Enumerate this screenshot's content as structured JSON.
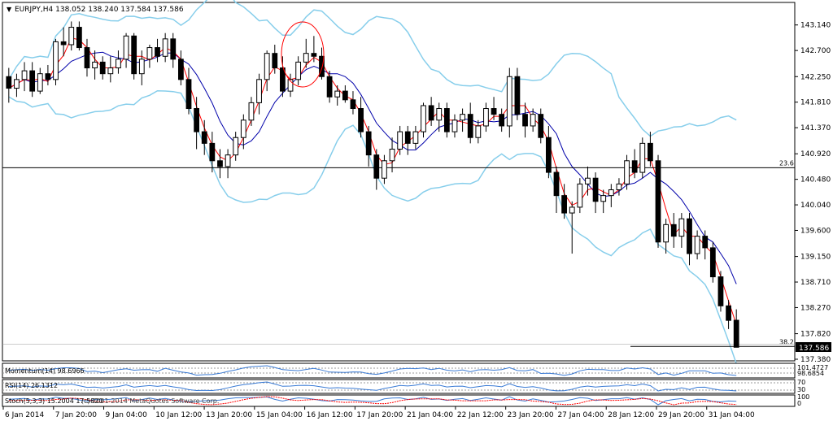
{
  "chart_data": {
    "type": "candlestick",
    "title": "EURJPY,H4  138.052 138.240 137.584 137.586",
    "symbol": "EURJPY",
    "timeframe": "H4",
    "ohlc_header": "138.052 138.240 137.584 137.586",
    "ylim": [
      137.38,
      143.5
    ],
    "y_ticks": [
      "143.140",
      "142.700",
      "142.250",
      "141.810",
      "141.370",
      "140.920",
      "140.480",
      "140.040",
      "139.600",
      "139.150",
      "138.710",
      "138.270",
      "137.820",
      "137.380"
    ],
    "last_price": "137.586",
    "x_ticks": [
      "6 Jan 2014",
      "7 Jan 20:00",
      "9 Jan 04:00",
      "10 Jan 12:00",
      "13 Jan 20:00",
      "15 Jan 04:00",
      "16 Jan 12:00",
      "17 Jan 20:00",
      "21 Jan 04:00",
      "22 Jan 12:00",
      "23 Jan 20:00",
      "27 Jan 04:00",
      "28 Jan 12:00",
      "29 Jan 20:00",
      "31 Jan 04:00"
    ],
    "fib_levels": [
      {
        "label": "23.6",
        "value": 140.68
      },
      {
        "label": "38.2",
        "value": 137.6
      }
    ],
    "candles": [
      [
        142.25,
        142.4,
        141.8,
        142.05
      ],
      [
        142.05,
        142.3,
        141.9,
        142.2
      ],
      [
        142.2,
        142.5,
        142.0,
        142.35
      ],
      [
        142.35,
        142.5,
        141.9,
        142.0
      ],
      [
        142.0,
        142.4,
        141.95,
        142.3
      ],
      [
        142.3,
        142.45,
        142.1,
        142.2
      ],
      [
        142.2,
        142.9,
        142.1,
        142.85
      ],
      [
        142.85,
        143.1,
        142.6,
        142.8
      ],
      [
        142.8,
        143.2,
        142.7,
        143.1
      ],
      [
        143.1,
        143.2,
        142.7,
        142.75
      ],
      [
        142.75,
        142.9,
        142.25,
        142.4
      ],
      [
        142.4,
        142.7,
        142.2,
        142.5
      ],
      [
        142.5,
        142.6,
        142.2,
        142.3
      ],
      [
        142.3,
        142.6,
        142.15,
        142.4
      ],
      [
        142.4,
        142.7,
        142.3,
        142.55
      ],
      [
        142.55,
        143.0,
        142.4,
        142.95
      ],
      [
        142.95,
        143.0,
        142.2,
        142.3
      ],
      [
        142.3,
        142.7,
        142.1,
        142.55
      ],
      [
        142.55,
        142.8,
        142.4,
        142.75
      ],
      [
        142.75,
        142.9,
        142.5,
        142.6
      ],
      [
        142.6,
        143.0,
        142.5,
        142.9
      ],
      [
        142.9,
        143.0,
        142.4,
        142.55
      ],
      [
        142.55,
        142.7,
        142.1,
        142.2
      ],
      [
        142.2,
        142.4,
        141.6,
        141.7
      ],
      [
        141.7,
        141.9,
        141.0,
        141.3
      ],
      [
        141.3,
        141.5,
        140.9,
        141.1
      ],
      [
        141.1,
        141.3,
        140.6,
        140.8
      ],
      [
        140.8,
        141.0,
        140.5,
        140.7
      ],
      [
        140.7,
        141.0,
        140.5,
        140.9
      ],
      [
        140.9,
        141.3,
        140.8,
        141.2
      ],
      [
        141.2,
        141.6,
        141.0,
        141.5
      ],
      [
        141.5,
        141.9,
        141.4,
        141.8
      ],
      [
        141.8,
        142.3,
        141.6,
        142.2
      ],
      [
        142.2,
        142.7,
        142.0,
        142.65
      ],
      [
        142.65,
        142.8,
        142.3,
        142.4
      ],
      [
        142.4,
        142.6,
        141.9,
        142.0
      ],
      [
        142.0,
        142.3,
        141.9,
        142.2
      ],
      [
        142.2,
        142.6,
        142.1,
        142.5
      ],
      [
        142.5,
        142.9,
        142.4,
        142.65
      ],
      [
        142.65,
        142.95,
        142.5,
        142.6
      ],
      [
        142.6,
        142.75,
        142.2,
        142.25
      ],
      [
        142.25,
        142.35,
        141.8,
        141.9
      ],
      [
        141.9,
        142.1,
        141.75,
        142.0
      ],
      [
        142.0,
        142.1,
        141.8,
        141.85
      ],
      [
        141.85,
        142.0,
        141.6,
        141.7
      ],
      [
        141.7,
        141.9,
        141.2,
        141.3
      ],
      [
        141.3,
        141.4,
        140.7,
        140.9
      ],
      [
        140.9,
        141.0,
        140.3,
        140.5
      ],
      [
        140.5,
        140.9,
        140.4,
        140.8
      ],
      [
        140.8,
        141.2,
        140.6,
        141.0
      ],
      [
        141.0,
        141.4,
        140.9,
        141.3
      ],
      [
        141.3,
        141.4,
        140.9,
        141.1
      ],
      [
        141.1,
        141.4,
        141.0,
        141.3
      ],
      [
        141.3,
        141.8,
        141.2,
        141.75
      ],
      [
        141.75,
        141.9,
        141.4,
        141.5
      ],
      [
        141.5,
        141.8,
        141.3,
        141.7
      ],
      [
        141.7,
        141.8,
        141.2,
        141.3
      ],
      [
        141.3,
        141.6,
        141.2,
        141.5
      ],
      [
        141.5,
        141.7,
        141.3,
        141.6
      ],
      [
        141.6,
        141.8,
        141.1,
        141.2
      ],
      [
        141.2,
        141.5,
        141.1,
        141.4
      ],
      [
        141.4,
        141.8,
        141.3,
        141.7
      ],
      [
        141.7,
        141.9,
        141.5,
        141.6
      ],
      [
        141.6,
        141.7,
        141.3,
        141.4
      ],
      [
        141.4,
        142.4,
        141.2,
        142.25
      ],
      [
        142.25,
        142.4,
        141.5,
        141.6
      ],
      [
        141.6,
        141.8,
        141.2,
        141.4
      ],
      [
        141.4,
        141.7,
        141.3,
        141.6
      ],
      [
        141.6,
        141.7,
        141.1,
        141.2
      ],
      [
        141.2,
        141.4,
        140.5,
        140.6
      ],
      [
        140.6,
        140.7,
        139.9,
        140.2
      ],
      [
        140.2,
        140.4,
        139.8,
        139.9
      ],
      [
        139.9,
        140.1,
        139.2,
        140.0
      ],
      [
        140.0,
        140.5,
        139.9,
        140.4
      ],
      [
        140.4,
        140.7,
        140.2,
        140.5
      ],
      [
        140.5,
        140.6,
        139.9,
        140.1
      ],
      [
        140.1,
        140.3,
        139.9,
        140.2
      ],
      [
        140.2,
        140.4,
        140.0,
        140.3
      ],
      [
        140.3,
        140.5,
        140.2,
        140.4
      ],
      [
        140.4,
        140.9,
        140.3,
        140.8
      ],
      [
        140.8,
        141.0,
        140.5,
        140.6
      ],
      [
        140.6,
        141.2,
        140.5,
        141.1
      ],
      [
        141.1,
        141.3,
        140.7,
        140.8
      ],
      [
        140.8,
        140.9,
        139.3,
        139.4
      ],
      [
        139.4,
        139.8,
        139.2,
        139.7
      ],
      [
        139.7,
        139.9,
        139.3,
        139.5
      ],
      [
        139.5,
        139.9,
        139.3,
        139.8
      ],
      [
        139.8,
        139.9,
        139.0,
        139.2
      ],
      [
        139.2,
        139.6,
        139.1,
        139.5
      ],
      [
        139.5,
        139.6,
        139.1,
        139.3
      ],
      [
        139.3,
        139.4,
        138.7,
        138.8
      ],
      [
        138.8,
        138.9,
        138.2,
        138.3
      ],
      [
        138.3,
        138.4,
        137.9,
        138.05
      ],
      [
        138.052,
        138.24,
        137.584,
        137.586
      ]
    ],
    "overlays": [
      {
        "name": "MA fast",
        "color": "#ff0000"
      },
      {
        "name": "MA slow",
        "color": "#0000aa"
      },
      {
        "name": "Bollinger Bands",
        "color": "#87ceeb"
      }
    ],
    "indicators": [
      {
        "label": "Momentum(14) 98.6966",
        "levels": [
          "101.4727",
          "98.6854"
        ]
      },
      {
        "label": "RSI(14) 26.1312",
        "levels": [
          "70",
          "30"
        ]
      },
      {
        "label": "Stoch(5,3,3) 15.2004 17.5820",
        "levels": [
          "100",
          "80",
          "20",
          "0"
        ]
      }
    ],
    "watermark": "(c) 2001-2014 MetaQuotes Software Corp."
  }
}
